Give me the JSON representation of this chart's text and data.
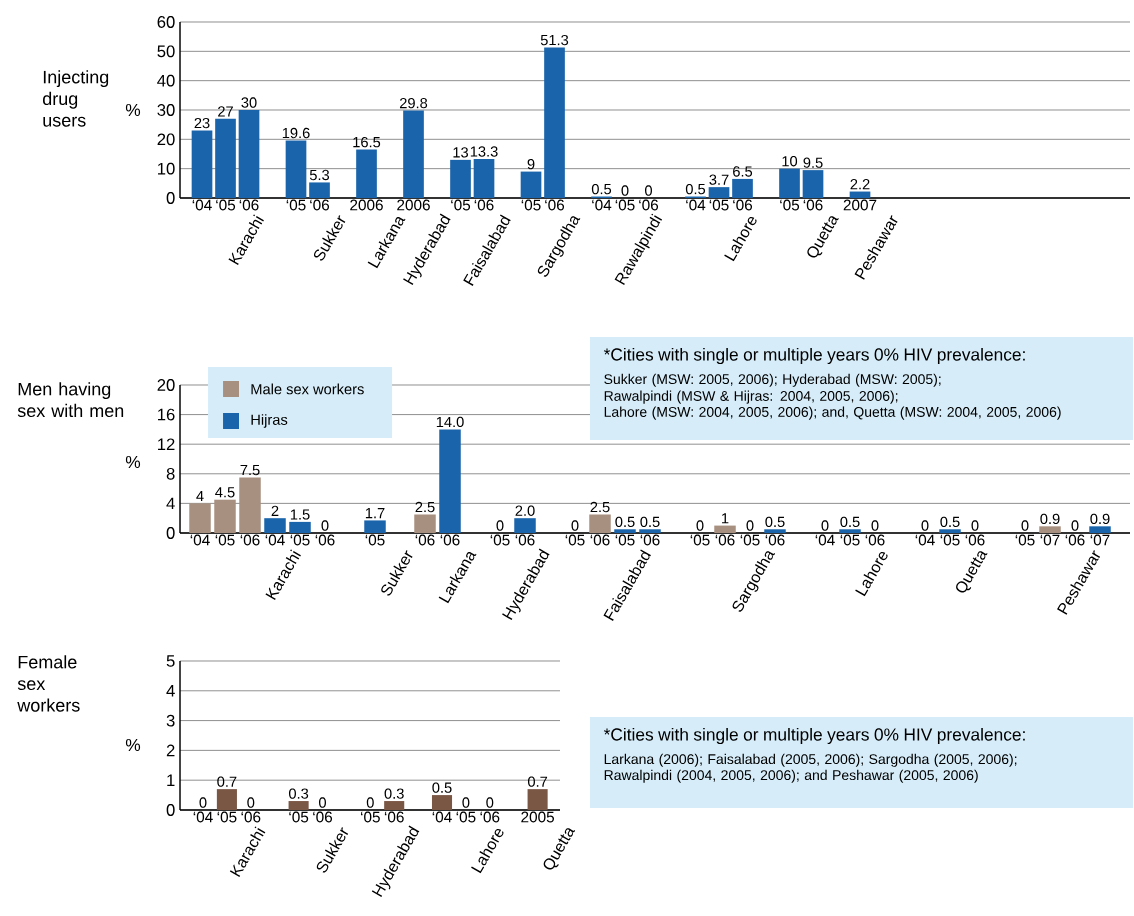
{
  "chart_data": [
    {
      "type": "bar",
      "title": "Injecting drug users",
      "ylabel": "%",
      "categories": [
        "‘04",
        "‘05",
        "‘06",
        null,
        "‘05",
        "‘06",
        null,
        "2006",
        null,
        "2006",
        null,
        "‘05",
        "‘06",
        null,
        "‘05",
        "‘06",
        null,
        "‘04",
        "‘05",
        "‘06",
        null,
        "‘04",
        "‘05",
        "‘06",
        null,
        "‘05",
        "‘06",
        null,
        "2007"
      ],
      "values": [
        23,
        27,
        30,
        null,
        19.6,
        5.3,
        null,
        16.5,
        null,
        29.8,
        null,
        13,
        13.3,
        null,
        9,
        51.3,
        null,
        0.5,
        0,
        0,
        null,
        0.5,
        3.7,
        6.5,
        null,
        10,
        9.5,
        null,
        2.2
      ],
      "color": "#1a64ab",
      "data_labels": true,
      "ylim": [
        0,
        60
      ],
      "yticks": [
        0,
        10,
        20,
        30,
        40,
        50,
        60
      ],
      "grid": "y",
      "annotations": [
        "Karachi",
        "Sukker",
        "Larkana",
        "Hyderabad",
        "Faisalabad",
        "Sargodha",
        "Rawalpindi",
        "Lahore",
        "Quetta",
        "Peshawar"
      ]
    },
    {
      "type": "bar",
      "title": "Men having sex with men",
      "ylabel": "%",
      "categories": [
        "‘04",
        "‘05",
        "‘06",
        "‘04",
        "‘05",
        "‘06",
        null,
        "‘05",
        null,
        "‘06",
        "‘06",
        null,
        "‘05",
        "‘06",
        null,
        "‘05",
        "‘06",
        "‘05",
        "‘06",
        null,
        "‘05",
        "‘06",
        "‘05",
        "‘06",
        null,
        "‘04",
        "‘05",
        "‘06",
        null,
        "‘04",
        "‘05",
        "‘06",
        null,
        "‘05",
        "‘07",
        "‘06",
        "‘07"
      ],
      "series": [
        {
          "name": "Male sex workers",
          "color": "#a89080",
          "values": [
            4,
            4.5,
            7.5,
            null,
            null,
            null,
            null,
            null,
            null,
            2.5,
            null,
            null,
            0,
            null,
            null,
            0,
            2.5,
            null,
            null,
            null,
            0,
            1,
            null,
            null,
            null,
            null,
            null,
            null,
            null,
            null,
            null,
            null,
            null,
            0,
            0.9,
            null,
            null
          ],
          "value_labels": [
            "4",
            "4.5",
            "7.5",
            null,
            null,
            null,
            null,
            null,
            null,
            "2.5",
            null,
            null,
            "0",
            null,
            null,
            "0",
            "2.5",
            null,
            null,
            null,
            "0",
            "1",
            null,
            null,
            null,
            null,
            null,
            null,
            null,
            null,
            null,
            null,
            null,
            "0",
            "0.9",
            null,
            null
          ]
        },
        {
          "name": "Hijras",
          "color": "#1a64ab",
          "values": [
            null,
            null,
            null,
            2,
            1.5,
            0,
            null,
            1.7,
            null,
            null,
            14.0,
            null,
            null,
            2.0,
            null,
            null,
            null,
            0.5,
            0.5,
            null,
            null,
            null,
            0,
            0.5,
            null,
            0,
            0.5,
            0,
            null,
            0,
            0.5,
            0,
            null,
            null,
            null,
            0,
            0.9
          ],
          "value_labels": [
            null,
            null,
            null,
            "2",
            "1.5",
            "0",
            null,
            "1.7",
            null,
            null,
            "14.0",
            null,
            null,
            "2.0",
            null,
            null,
            null,
            "0.5",
            "0.5",
            null,
            null,
            null,
            "0",
            "0.5",
            null,
            "0",
            "0.5",
            "0",
            null,
            "0",
            "0.5",
            "0",
            null,
            null,
            null,
            "0",
            "0.9"
          ]
        }
      ],
      "ylim": [
        0,
        20
      ],
      "yticks": [
        0,
        4,
        8,
        12,
        16,
        20
      ],
      "grid": "y",
      "legend": "top left",
      "annotations": [
        "Karachi",
        "Sukker",
        "Larkana",
        "Hyderabad",
        "Faisalabad",
        "Sargodha",
        "Lahore",
        "Quetta",
        "Peshawar",
        "*Cities with single or multiple years 0% HIV prevalence:",
        "Sukker (MSW: 2005, 2006); Hyderabad (MSW: 2005);",
        "Rawalpindi (MSW & Hijras: 2004, 2005, 2006);",
        "Lahore (MSW: 2004, 2005, 2006); and, Quetta (MSW: 2004, 2005, 2006)"
      ]
    },
    {
      "type": "bar",
      "title": "Female sex workers",
      "ylabel": "%",
      "categories": [
        "‘04",
        "‘05",
        "‘06",
        null,
        "‘05",
        "‘06",
        null,
        "‘05",
        "‘06",
        null,
        "‘04",
        "‘05",
        "‘06",
        null,
        "2005"
      ],
      "values": [
        0,
        0.7,
        0,
        null,
        0.3,
        0,
        null,
        0,
        0.3,
        null,
        0.5,
        0,
        0,
        null,
        0.7
      ],
      "color": "#7a5645",
      "data_labels": true,
      "ylim": [
        0,
        5
      ],
      "yticks": [
        0,
        1,
        2,
        3,
        4,
        5
      ],
      "grid": "y",
      "annotations": [
        "Karachi",
        "Sukker",
        "Hyderabad",
        "Lahore",
        "Quetta",
        "*Cities with single or multiple years 0% HIV prevalence:",
        "Larkana (2006); Faisalabad (2005, 2006); Sargodha (2005, 2006);",
        "Rawalpindi (2004, 2005, 2006); and Peshawar (2005, 2006)"
      ]
    }
  ]
}
